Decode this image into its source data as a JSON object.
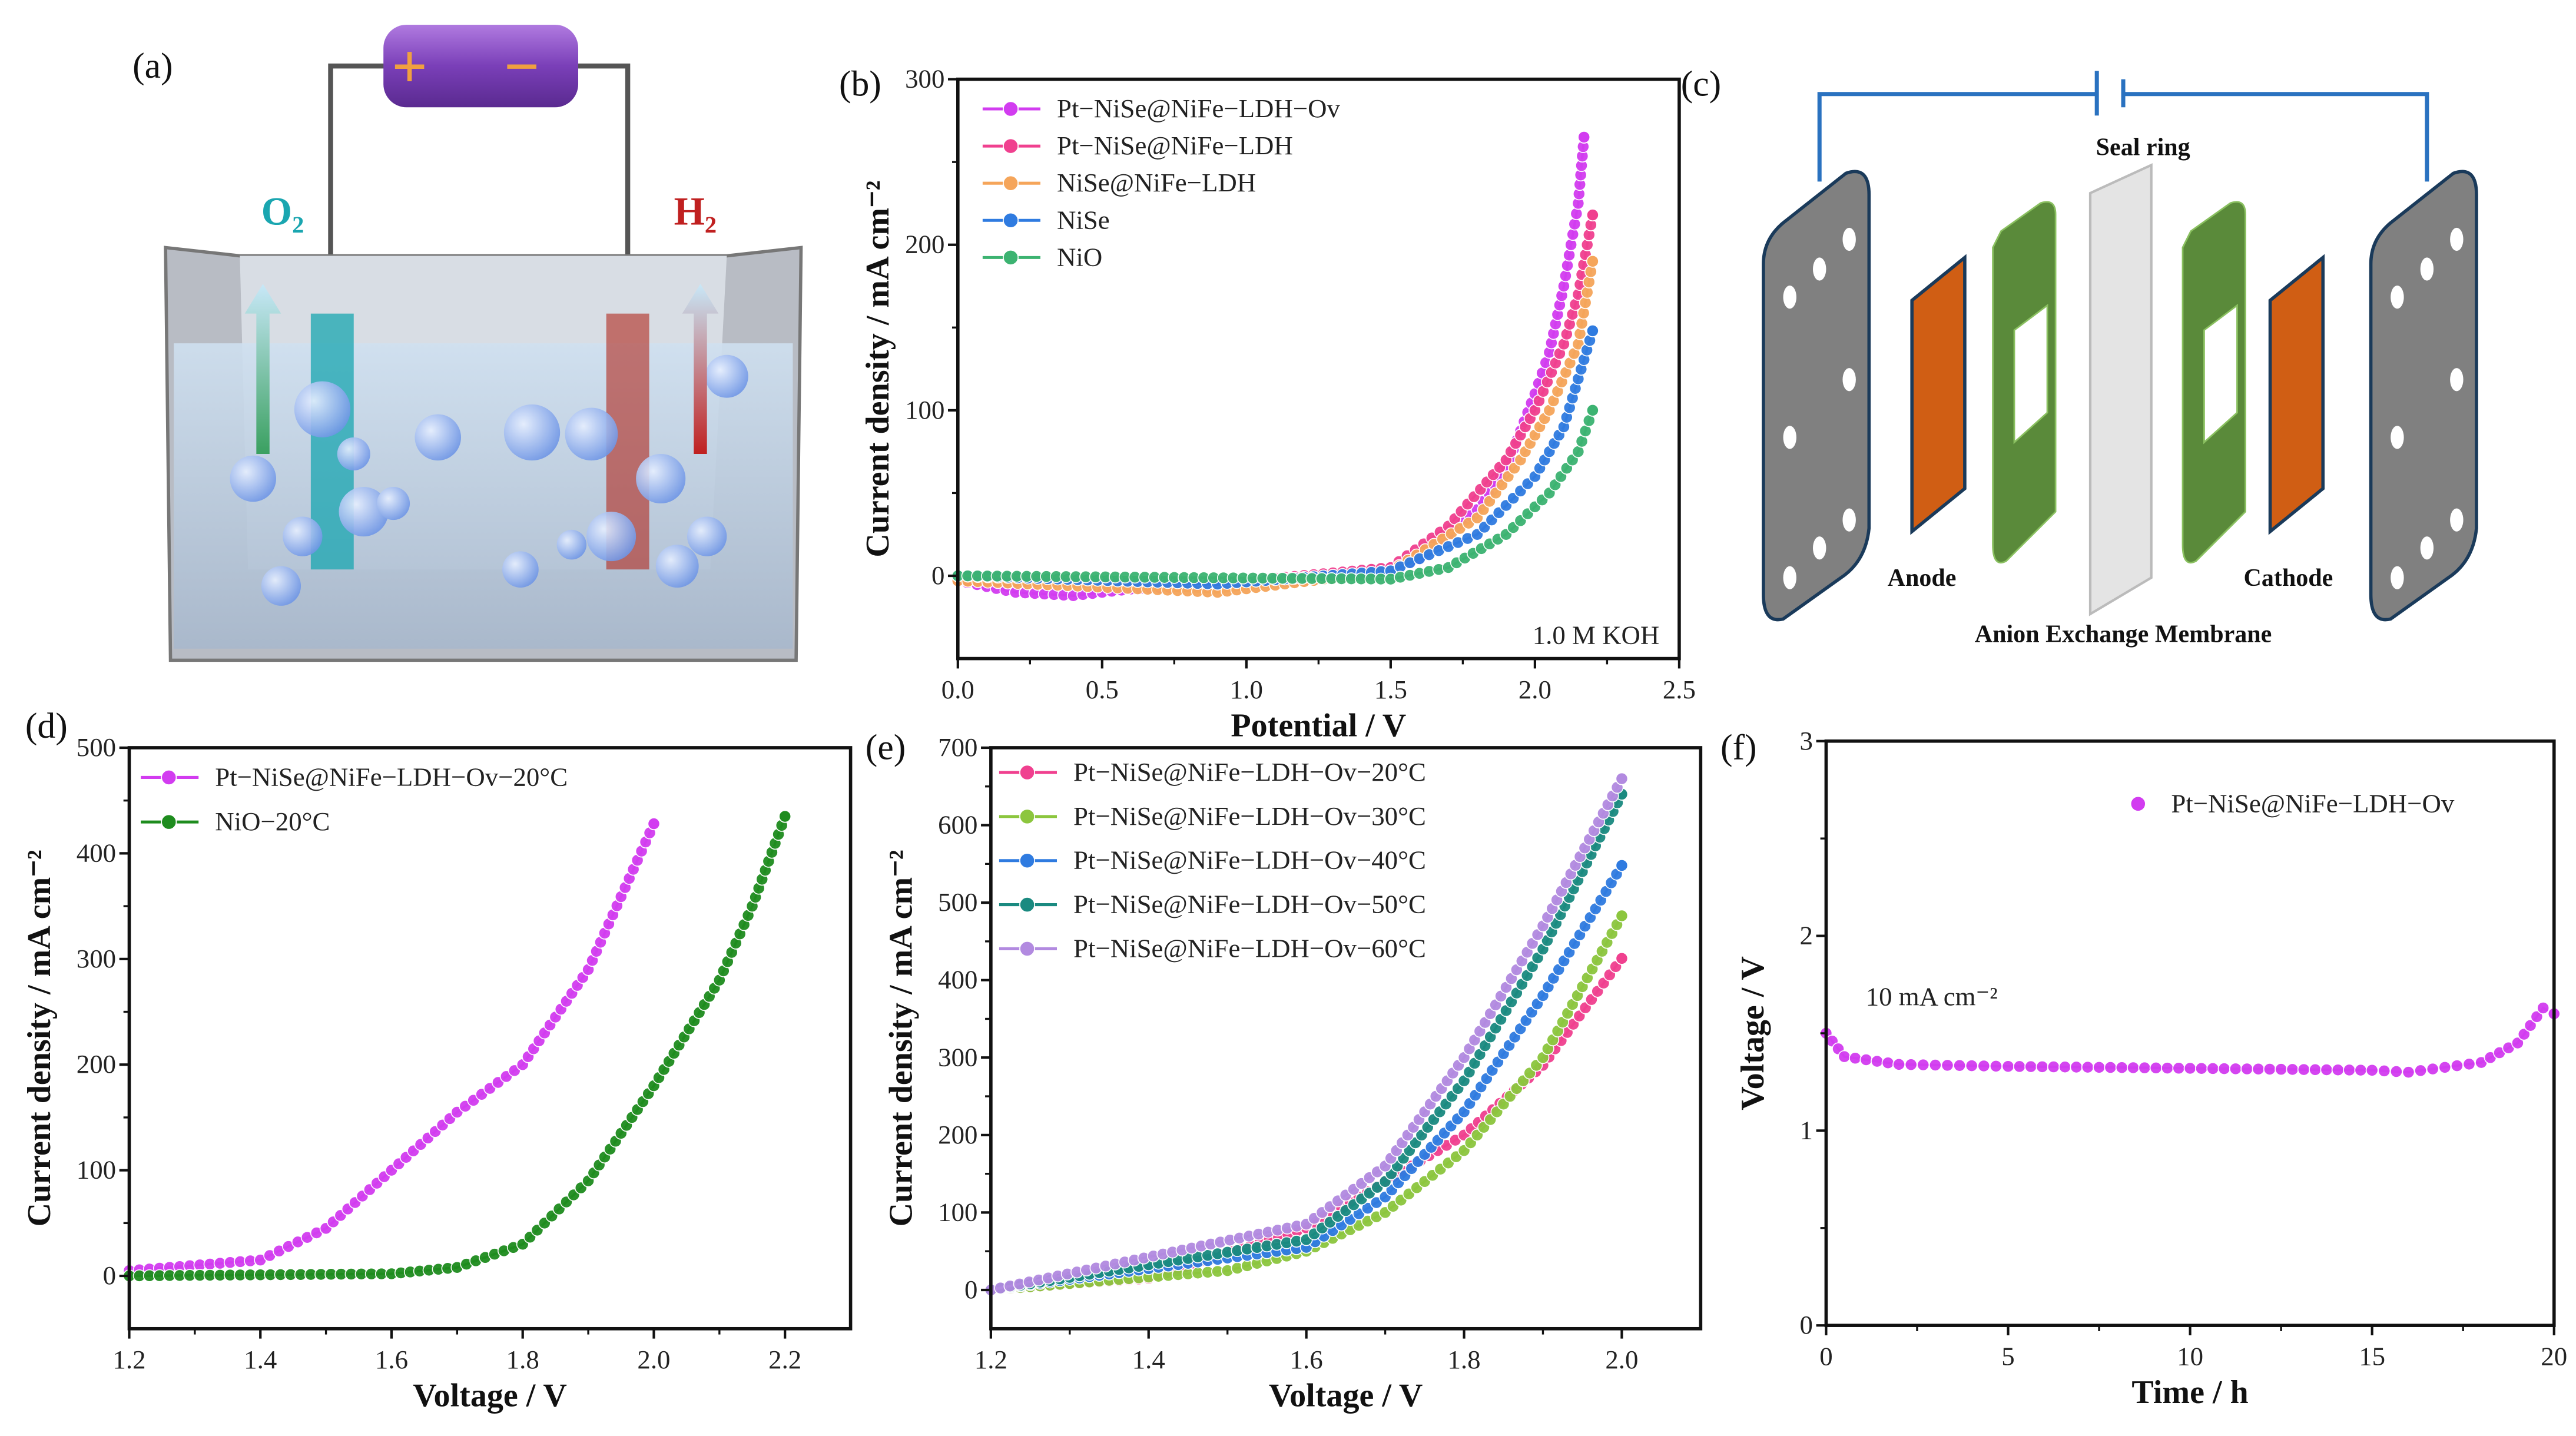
{
  "panel_labels": {
    "a": "(a)",
    "b": "(b)",
    "c": "(c)",
    "d": "(d)",
    "e": "(e)",
    "f": "(f)"
  },
  "panel_a": {
    "plus": "+",
    "minus": "−",
    "o2": "O₂",
    "h2": "H₂",
    "colors": {
      "battery": "#8a4fc4",
      "anode": "#1aa6b0",
      "cathode": "#b0281c"
    }
  },
  "panel_c": {
    "seal_ring": "Seal ring",
    "anode": "Anode",
    "cathode": "Cathode",
    "membrane": "Anion Exchange Membrane",
    "colors": {
      "plate": "#808080",
      "electrode": "#d05e14",
      "gasket": "#5a8a3a",
      "wire": "#2a72c0"
    }
  },
  "chart_data": [
    {
      "id": "b",
      "type": "line",
      "xlabel": "Potential / V",
      "ylabel": "Current density / mA cm⁻²",
      "xlim": [
        0,
        2.5
      ],
      "ylim": [
        -50,
        300
      ],
      "xticks": [
        0,
        0.5,
        1.0,
        1.5,
        2.0,
        2.5
      ],
      "xtick_labels": [
        "0.0",
        "0.5",
        "1.0",
        "1.5",
        "2.0",
        "2.5"
      ],
      "yticks": [
        0,
        100,
        200,
        300
      ],
      "ytick_labels": [
        "0",
        "100",
        "200",
        "300"
      ],
      "annotation": "1.0 M KOH",
      "legend_position": "top-left",
      "series": [
        {
          "name": "Pt−NiSe@NiFe−LDH−Ov",
          "color": "#d23cf0",
          "x": [
            0,
            0.2,
            0.4,
            0.6,
            1.0,
            1.4,
            1.6,
            1.8,
            1.9,
            2.0,
            2.05,
            2.1,
            2.15,
            2.17
          ],
          "y": [
            -3,
            -10,
            -12,
            -8,
            -5,
            0,
            10,
            40,
            65,
            110,
            135,
            175,
            225,
            265
          ]
        },
        {
          "name": "Pt−NiSe@NiFe−LDH",
          "color": "#f0408f",
          "x": [
            0,
            0.5,
            1.0,
            1.5,
            1.7,
            1.9,
            2.0,
            2.1,
            2.15,
            2.2
          ],
          "y": [
            -3,
            -4,
            -3,
            5,
            30,
            70,
            100,
            140,
            170,
            218
          ]
        },
        {
          "name": "NiSe@NiFe−LDH",
          "color": "#f5a55a",
          "x": [
            0,
            0.9,
            1.5,
            1.8,
            1.95,
            2.05,
            2.15,
            2.2
          ],
          "y": [
            -3,
            -10,
            3,
            35,
            70,
            100,
            140,
            190
          ]
        },
        {
          "name": "NiSe",
          "color": "#2f7be0",
          "x": [
            0,
            0.9,
            1.5,
            1.8,
            2.0,
            2.1,
            2.2
          ],
          "y": [
            0,
            -5,
            3,
            25,
            60,
            90,
            148
          ]
        },
        {
          "name": "NiO",
          "color": "#3cb371",
          "x": [
            0,
            1.5,
            1.7,
            1.9,
            2.05,
            2.15,
            2.2
          ],
          "y": [
            0,
            -2,
            5,
            25,
            50,
            75,
            100
          ]
        }
      ]
    },
    {
      "id": "d",
      "type": "line",
      "xlabel": "Voltage / V",
      "ylabel": "Current density / mA cm⁻²",
      "xlim": [
        1.2,
        2.3
      ],
      "ylim": [
        -50,
        500
      ],
      "xticks": [
        1.2,
        1.4,
        1.6,
        1.8,
        2.0,
        2.2
      ],
      "xtick_labels": [
        "1.2",
        "1.4",
        "1.6",
        "1.8",
        "2.0",
        "2.2"
      ],
      "yticks": [
        0,
        100,
        200,
        300,
        400,
        500
      ],
      "ytick_labels": [
        "0",
        "100",
        "200",
        "300",
        "400",
        "500"
      ],
      "legend_position": "top-left",
      "series": [
        {
          "name": "Pt−NiSe@NiFe−LDH−Ov−20°C",
          "color": "#d23cf0",
          "x": [
            1.2,
            1.4,
            1.5,
            1.6,
            1.7,
            1.8,
            1.9,
            2.0
          ],
          "y": [
            5,
            15,
            45,
            100,
            155,
            200,
            290,
            428
          ]
        },
        {
          "name": "NiO−20°C",
          "color": "#1e8c1e",
          "x": [
            1.2,
            1.6,
            1.7,
            1.8,
            1.9,
            2.0,
            2.1,
            2.15,
            2.2
          ],
          "y": [
            0,
            2,
            8,
            30,
            90,
            180,
            280,
            350,
            435
          ]
        }
      ]
    },
    {
      "id": "e",
      "type": "line",
      "xlabel": "Voltage / V",
      "ylabel": "Current density / mA cm⁻²",
      "xlim": [
        1.2,
        2.1
      ],
      "ylim": [
        -50,
        700
      ],
      "xticks": [
        1.2,
        1.4,
        1.6,
        1.8,
        2.0
      ],
      "xtick_labels": [
        "1.2",
        "1.4",
        "1.6",
        "1.8",
        "2.0"
      ],
      "yticks": [
        0,
        100,
        200,
        300,
        400,
        500,
        600,
        700
      ],
      "ytick_labels": [
        "0",
        "100",
        "200",
        "300",
        "400",
        "500",
        "600",
        "700"
      ],
      "legend_position": "top-left",
      "series": [
        {
          "name": "Pt−NiSe@NiFe−LDH−Ov−20°C",
          "color": "#f0408f",
          "x": [
            1.2,
            1.4,
            1.6,
            1.7,
            1.8,
            1.9,
            2.0
          ],
          "y": [
            0,
            15,
            80,
            140,
            200,
            290,
            428
          ]
        },
        {
          "name": "Pt−NiSe@NiFe−LDH−Ov−30°C",
          "color": "#8cc63e",
          "x": [
            1.2,
            1.5,
            1.6,
            1.7,
            1.8,
            1.9,
            2.0
          ],
          "y": [
            0,
            25,
            50,
            100,
            180,
            300,
            483
          ]
        },
        {
          "name": "Pt−NiSe@NiFe−LDH−Ov−40°C",
          "color": "#2f7be0",
          "x": [
            1.2,
            1.6,
            1.7,
            1.8,
            1.9,
            2.0
          ],
          "y": [
            0,
            55,
            120,
            230,
            380,
            548
          ]
        },
        {
          "name": "Pt−NiSe@NiFe−LDH−Ov−50°C",
          "color": "#1a8a80",
          "x": [
            1.2,
            1.6,
            1.7,
            1.8,
            1.9,
            2.0
          ],
          "y": [
            0,
            65,
            140,
            270,
            440,
            640
          ]
        },
        {
          "name": "Pt−NiSe@NiFe−LDH−Ov−60°C",
          "color": "#b28ae0",
          "x": [
            1.2,
            1.6,
            1.7,
            1.8,
            1.9,
            2.0
          ],
          "y": [
            0,
            85,
            160,
            300,
            470,
            660
          ]
        }
      ]
    },
    {
      "id": "f",
      "type": "line",
      "xlabel": "Time / h",
      "ylabel": "Voltage / V",
      "xlim": [
        0,
        20
      ],
      "ylim": [
        0,
        3
      ],
      "xticks": [
        0,
        5,
        10,
        15,
        20
      ],
      "xtick_labels": [
        "0",
        "5",
        "10",
        "15",
        "20"
      ],
      "yticks": [
        0,
        1,
        2,
        3
      ],
      "ytick_labels": [
        "0",
        "1",
        "2",
        "3"
      ],
      "annotation": "10 mA cm⁻²",
      "legend_position": "top-right",
      "series": [
        {
          "name": "Pt−NiSe@NiFe−LDH−Ov",
          "color": "#d23cf0",
          "x": [
            0,
            0.5,
            2,
            5,
            10,
            15,
            16,
            18,
            19,
            19.7,
            20
          ],
          "y": [
            1.5,
            1.38,
            1.34,
            1.33,
            1.32,
            1.31,
            1.3,
            1.35,
            1.45,
            1.63,
            1.6
          ]
        }
      ]
    }
  ]
}
